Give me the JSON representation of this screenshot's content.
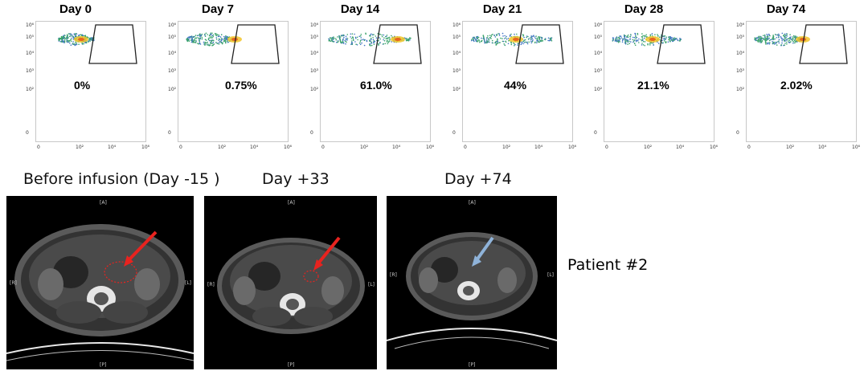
{
  "flow_panels": [
    {
      "title": "Day 0",
      "percent": "0%",
      "gated_fraction": 0.0
    },
    {
      "title": "Day 7",
      "percent": "0.75%",
      "gated_fraction": 0.0075
    },
    {
      "title": "Day 14",
      "percent": "61.0%",
      "gated_fraction": 0.61
    },
    {
      "title": "Day 21",
      "percent": "44%",
      "gated_fraction": 0.44
    },
    {
      "title": "Day 28",
      "percent": "21.1%",
      "gated_fraction": 0.211
    },
    {
      "title": "Day 74",
      "percent": "2.02%",
      "gated_fraction": 0.0202
    }
  ],
  "axis": {
    "y_ticks": [
      "10⁶",
      "10⁵",
      "10⁴",
      "10³",
      "10²",
      "0"
    ],
    "x_ticks": [
      "0",
      "10²",
      "10⁴",
      "10⁶"
    ]
  },
  "ct_scans": [
    {
      "label": "Before infusion (Day -15 )",
      "arrow_color": "#e8231f",
      "lesion": true
    },
    {
      "label": "Day +33",
      "arrow_color": "#e8231f",
      "lesion": true
    },
    {
      "label": "Day +74",
      "arrow_color": "#8fb3d9",
      "lesion": false
    }
  ],
  "patient_label": "Patient #2"
}
